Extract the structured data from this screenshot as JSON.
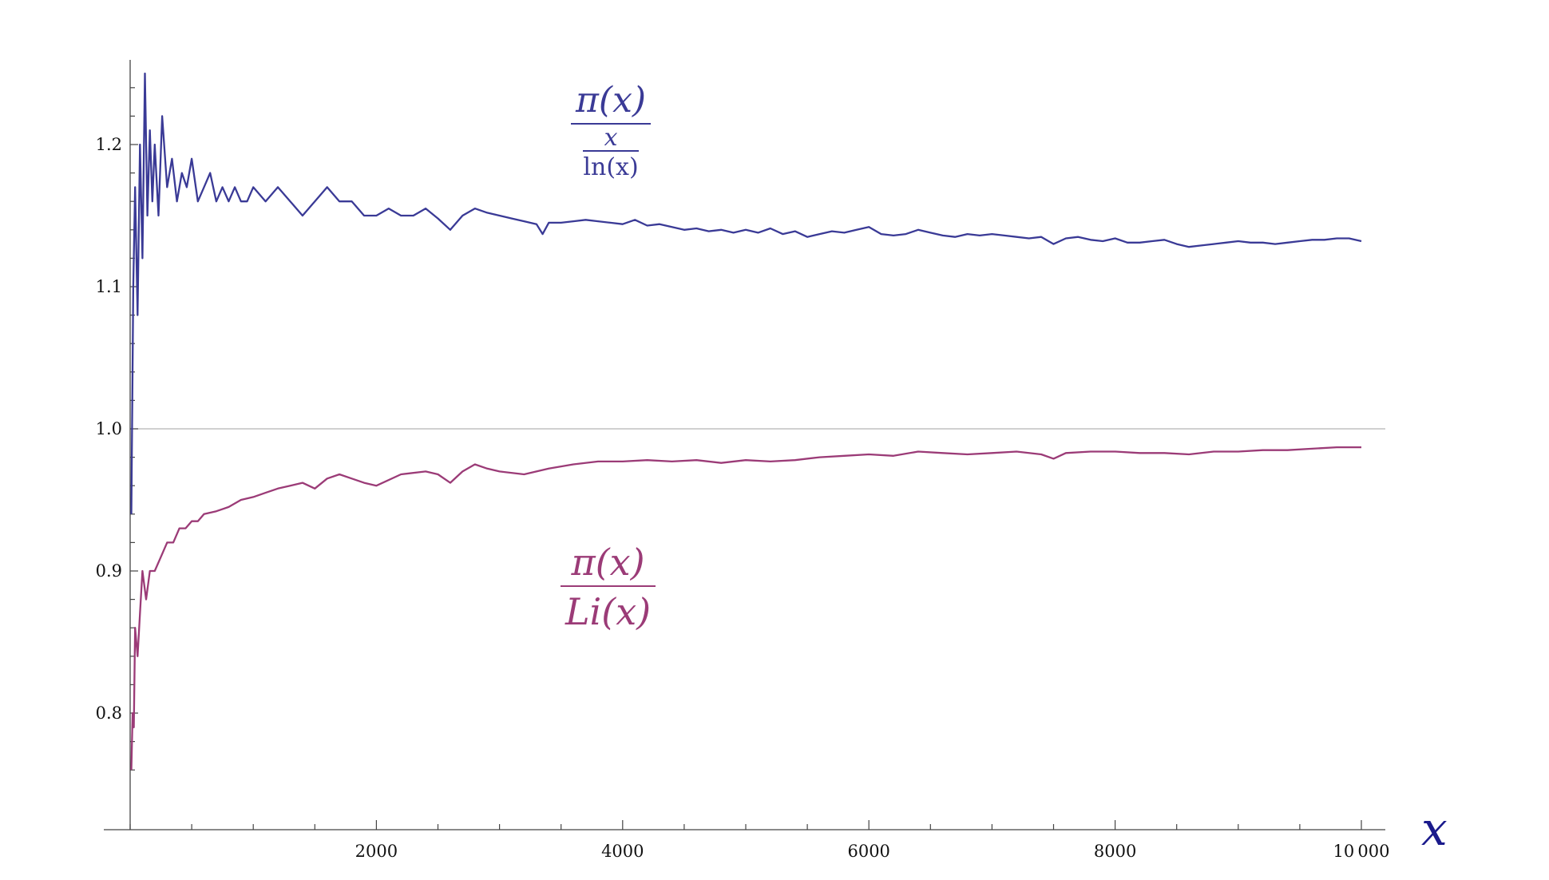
{
  "chart_data": {
    "type": "line",
    "xlabel": "x",
    "xlim": [
      0,
      10200
    ],
    "ylim": [
      0.755,
      1.26
    ],
    "xticks": [
      {
        "value": 2000,
        "label": "2000"
      },
      {
        "value": 4000,
        "label": "4000"
      },
      {
        "value": 6000,
        "label": "6000"
      },
      {
        "value": 8000,
        "label": "8000"
      },
      {
        "value": 10000,
        "label": "10 000"
      }
    ],
    "yticks": [
      {
        "value": 0.8,
        "label": "0.8"
      },
      {
        "value": 0.9,
        "label": "0.9"
      },
      {
        "value": 1.0,
        "label": "1.0"
      },
      {
        "value": 1.1,
        "label": "1.1"
      },
      {
        "value": 1.2,
        "label": "1.2"
      }
    ],
    "reference_line_y": 1.0,
    "colors": {
      "upper": "#3a3a96",
      "lower": "#9b3b77",
      "axis": "#444444",
      "reference": "#b4b4b4",
      "xlabel": "#1a1a8c"
    },
    "series": [
      {
        "color": "#3a3a96",
        "annotation": {
          "numerator": "π(x)",
          "denominator_numerator": "x",
          "denominator_denominator": "ln(x)"
        },
        "x": [
          10,
          25,
          40,
          60,
          80,
          100,
          120,
          140,
          160,
          180,
          200,
          230,
          260,
          300,
          340,
          380,
          420,
          460,
          500,
          550,
          600,
          650,
          700,
          750,
          800,
          850,
          900,
          950,
          1000,
          1100,
          1200,
          1300,
          1400,
          1500,
          1600,
          1700,
          1800,
          1900,
          2000,
          2100,
          2200,
          2300,
          2400,
          2500,
          2600,
          2700,
          2800,
          2900,
          3000,
          3100,
          3200,
          3300,
          3350,
          3400,
          3500,
          3600,
          3700,
          3800,
          3900,
          4000,
          4100,
          4200,
          4300,
          4400,
          4500,
          4600,
          4700,
          4800,
          4900,
          5000,
          5100,
          5200,
          5300,
          5400,
          5500,
          5600,
          5700,
          5800,
          5900,
          6000,
          6100,
          6200,
          6300,
          6400,
          6500,
          6600,
          6700,
          6800,
          6900,
          7000,
          7100,
          7200,
          7300,
          7400,
          7500,
          7600,
          7700,
          7800,
          7900,
          8000,
          8100,
          8200,
          8300,
          8400,
          8500,
          8600,
          8700,
          8800,
          8900,
          9000,
          9100,
          9200,
          9300,
          9400,
          9500,
          9600,
          9700,
          9800,
          9900,
          10000
        ],
        "y": [
          0.94,
          1.1,
          1.17,
          1.08,
          1.2,
          1.12,
          1.25,
          1.15,
          1.21,
          1.16,
          1.2,
          1.15,
          1.22,
          1.17,
          1.19,
          1.16,
          1.18,
          1.17,
          1.19,
          1.16,
          1.17,
          1.18,
          1.16,
          1.17,
          1.16,
          1.17,
          1.16,
          1.16,
          1.17,
          1.16,
          1.17,
          1.16,
          1.15,
          1.16,
          1.17,
          1.16,
          1.16,
          1.15,
          1.15,
          1.155,
          1.15,
          1.15,
          1.155,
          1.148,
          1.14,
          1.15,
          1.155,
          1.152,
          1.15,
          1.148,
          1.146,
          1.144,
          1.137,
          1.145,
          1.145,
          1.146,
          1.147,
          1.146,
          1.145,
          1.144,
          1.147,
          1.143,
          1.144,
          1.142,
          1.14,
          1.141,
          1.139,
          1.14,
          1.138,
          1.14,
          1.138,
          1.141,
          1.137,
          1.139,
          1.135,
          1.137,
          1.139,
          1.138,
          1.14,
          1.142,
          1.137,
          1.136,
          1.137,
          1.14,
          1.138,
          1.136,
          1.135,
          1.137,
          1.136,
          1.137,
          1.136,
          1.135,
          1.134,
          1.135,
          1.13,
          1.134,
          1.135,
          1.133,
          1.132,
          1.134,
          1.131,
          1.131,
          1.132,
          1.133,
          1.13,
          1.128,
          1.129,
          1.13,
          1.131,
          1.132,
          1.131,
          1.131,
          1.13,
          1.131,
          1.132,
          1.133,
          1.133,
          1.134,
          1.134,
          1.132
        ]
      },
      {
        "color": "#9b3b77",
        "annotation": {
          "numerator": "π(x)",
          "denominator": "Li(x)"
        },
        "x": [
          10,
          20,
          30,
          40,
          60,
          80,
          100,
          130,
          160,
          200,
          250,
          300,
          350,
          400,
          450,
          500,
          550,
          600,
          700,
          800,
          900,
          1000,
          1100,
          1200,
          1300,
          1400,
          1500,
          1600,
          1700,
          1800,
          1900,
          2000,
          2200,
          2400,
          2500,
          2600,
          2700,
          2800,
          2900,
          3000,
          3200,
          3400,
          3600,
          3800,
          4000,
          4200,
          4400,
          4600,
          4800,
          5000,
          5200,
          5400,
          5600,
          5800,
          6000,
          6200,
          6400,
          6600,
          6800,
          7000,
          7200,
          7400,
          7500,
          7600,
          7800,
          8000,
          8200,
          8400,
          8600,
          8800,
          9000,
          9200,
          9400,
          9600,
          9800,
          10000
        ],
        "y": [
          0.76,
          0.8,
          0.79,
          0.86,
          0.84,
          0.87,
          0.9,
          0.88,
          0.9,
          0.9,
          0.91,
          0.92,
          0.92,
          0.93,
          0.93,
          0.935,
          0.935,
          0.94,
          0.942,
          0.945,
          0.95,
          0.952,
          0.955,
          0.958,
          0.96,
          0.962,
          0.958,
          0.965,
          0.968,
          0.965,
          0.962,
          0.96,
          0.968,
          0.97,
          0.968,
          0.962,
          0.97,
          0.975,
          0.972,
          0.97,
          0.968,
          0.972,
          0.975,
          0.977,
          0.977,
          0.978,
          0.977,
          0.978,
          0.976,
          0.978,
          0.977,
          0.978,
          0.98,
          0.981,
          0.982,
          0.981,
          0.984,
          0.983,
          0.982,
          0.983,
          0.984,
          0.982,
          0.979,
          0.983,
          0.984,
          0.984,
          0.983,
          0.983,
          0.982,
          0.984,
          0.984,
          0.985,
          0.985,
          0.986,
          0.987,
          0.987
        ]
      }
    ]
  }
}
